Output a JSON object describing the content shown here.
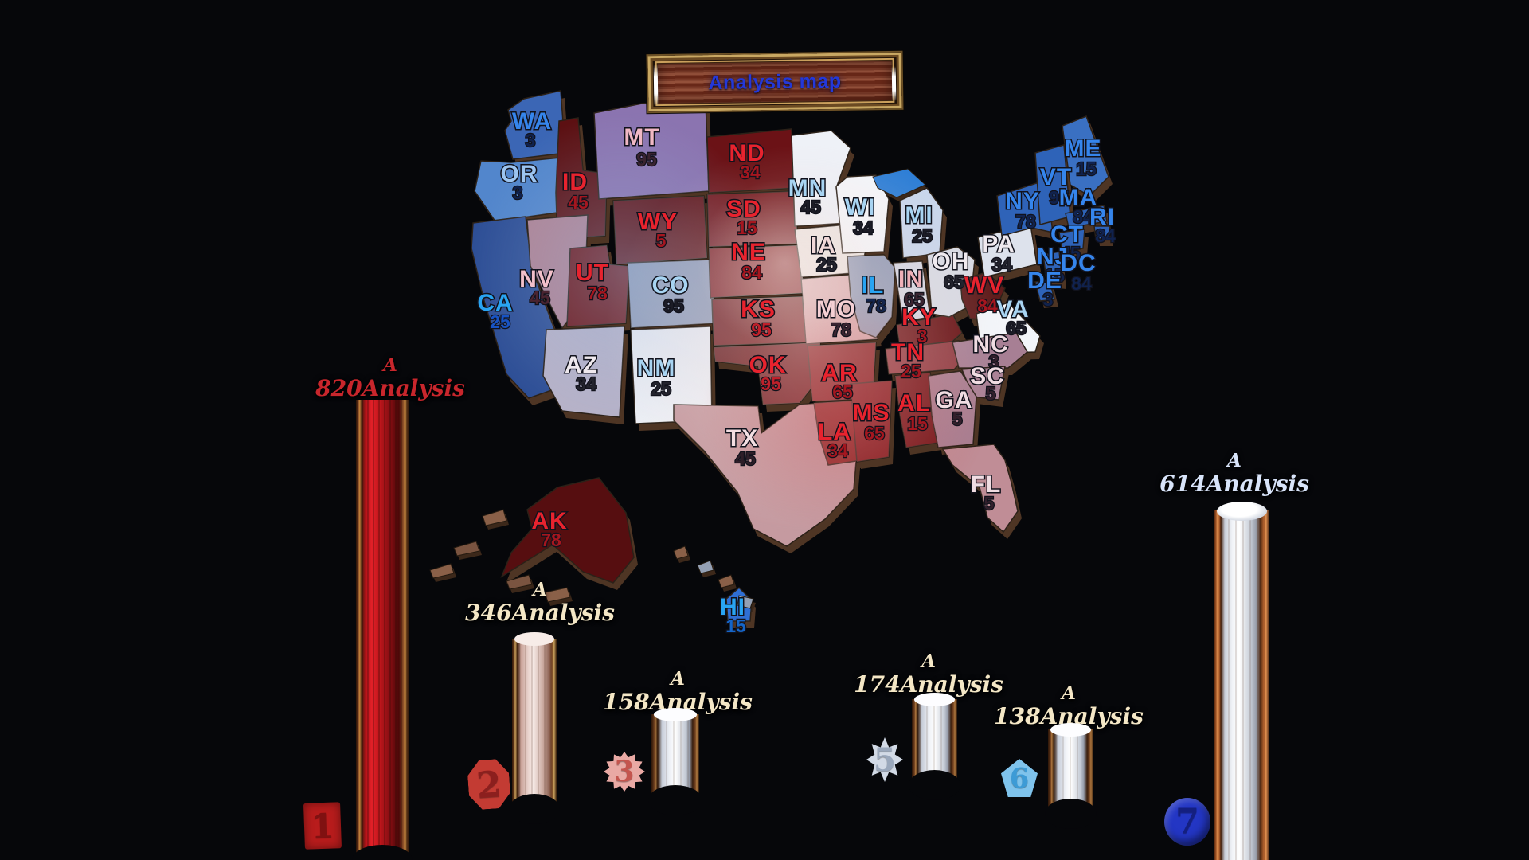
{
  "title": {
    "text": "Analysis map",
    "text_color": "#2438d8",
    "frame_color": "#c9a863",
    "wood_color": "#7a3a28"
  },
  "map": {
    "states": [
      {
        "id": "WA",
        "value": "3",
        "fill": "#3b66b5",
        "label_color": "#3585ec",
        "value_color": "#10224e"
      },
      {
        "id": "OR",
        "value": "3",
        "fill": "#5286cc",
        "label_color": "#9cc4f0",
        "value_color": "#10224e"
      },
      {
        "id": "CA",
        "value": "25",
        "fill": "#2e4f96",
        "label_color": "#29a4f2",
        "value_color": "#1753c4"
      },
      {
        "id": "ID",
        "value": "45",
        "fill": "#5c1012",
        "label_color": "#e8232e",
        "value_color": "#a5161f"
      },
      {
        "id": "NV",
        "value": "45",
        "fill": "#b08394",
        "label_color": "#f2c0ca",
        "value_color": "#4a2430"
      },
      {
        "id": "UT",
        "value": "78",
        "fill": "#6e1416",
        "label_color": "#e8232e",
        "value_color": "#a5161f"
      },
      {
        "id": "AZ",
        "value": "34",
        "fill": "#b7b2c8",
        "label_color": "#efe9ee",
        "value_color": "#23232d"
      },
      {
        "id": "MT",
        "value": "95",
        "fill": "#8b74b0",
        "label_color": "#f0b8c4",
        "value_color": "#3a2430"
      },
      {
        "id": "WY",
        "value": "5",
        "fill": "#5f1013",
        "label_color": "#e8232e",
        "value_color": "#a5161f"
      },
      {
        "id": "CO",
        "value": "95",
        "fill": "#8e9ab6",
        "label_color": "#a8d4f2",
        "value_color": "#1c1c26"
      },
      {
        "id": "NM",
        "value": "25",
        "fill": "#edf0f6",
        "label_color": "#a8d4f2",
        "value_color": "#23232d"
      },
      {
        "id": "ND",
        "value": "34",
        "fill": "#6b1216",
        "label_color": "#e8232e",
        "value_color": "#a5161f"
      },
      {
        "id": "SD",
        "value": "15",
        "fill": "#701318",
        "label_color": "#e8232e",
        "value_color": "#a5161f"
      },
      {
        "id": "NE",
        "value": "84",
        "fill": "#7a1417",
        "label_color": "#e8232e",
        "value_color": "#a5161f"
      },
      {
        "id": "KS",
        "value": "95",
        "fill": "#6a1013",
        "label_color": "#e8232e",
        "value_color": "#c0202a"
      },
      {
        "id": "OK",
        "value": "95",
        "fill": "#5e0d10",
        "label_color": "#e8232e",
        "value_color": "#c0202a"
      },
      {
        "id": "TX",
        "value": "45",
        "fill": "#c59aa0",
        "label_color": "#f3dee2",
        "value_color": "#2e1e28"
      },
      {
        "id": "MN",
        "value": "45",
        "fill": "#eef1f7",
        "label_color": "#a8d4f2",
        "value_color": "#1c1c26"
      },
      {
        "id": "IA",
        "value": "25",
        "fill": "#eae4e0",
        "label_color": "#f0d8d8",
        "value_color": "#23232d"
      },
      {
        "id": "MO",
        "value": "78",
        "fill": "#d8a9ac",
        "label_color": "#f5d0d4",
        "value_color": "#3a2430"
      },
      {
        "id": "AR",
        "value": "65",
        "fill": "#7d1315",
        "label_color": "#e8232e",
        "value_color": "#a5161f"
      },
      {
        "id": "LA",
        "value": "34",
        "fill": "#871a1a",
        "label_color": "#e8232e",
        "value_color": "#a5161f"
      },
      {
        "id": "WI",
        "value": "34",
        "fill": "#f4f6fa",
        "label_color": "#a8d4f2",
        "value_color": "#1c1c26"
      },
      {
        "id": "IL",
        "value": "78",
        "fill": "#8d98b4",
        "label_color": "#29a4f2",
        "value_color": "#14264e"
      },
      {
        "id": "MS",
        "value": "65",
        "fill": "#7c1316",
        "label_color": "#e8232e",
        "value_color": "#a5161f"
      },
      {
        "id": "MI",
        "value": "25",
        "fill": "#c8d6ec",
        "label_color": "#a8d4f2",
        "value_color": "#1c1c26"
      },
      {
        "id": "IN",
        "value": "65",
        "fill": "#d3d6e2",
        "label_color": "#efb0b8",
        "value_color": "#3a2430"
      },
      {
        "id": "KY",
        "value": "3",
        "fill": "#671013",
        "label_color": "#e8232e",
        "value_color": "#a5161f"
      },
      {
        "id": "TN",
        "value": "25",
        "fill": "#8e3a40",
        "label_color": "#e8232e",
        "value_color": "#a5161f"
      },
      {
        "id": "AL",
        "value": "15",
        "fill": "#6f1114",
        "label_color": "#e8232e",
        "value_color": "#a5161f"
      },
      {
        "id": "OH",
        "value": "65",
        "fill": "#d7dae4",
        "label_color": "#efe9ee",
        "value_color": "#23232d"
      },
      {
        "id": "WV",
        "value": "84",
        "fill": "#5f1b1b",
        "label_color": "#e8232e",
        "value_color": "#a5161f"
      },
      {
        "id": "VA",
        "value": "65",
        "fill": "#f3f5f9",
        "label_color": "#a8d4f2",
        "value_color": "#1c1c26"
      },
      {
        "id": "NC",
        "value": "3",
        "fill": "#a77f94",
        "label_color": "#f0dce2",
        "value_color": "#33202c"
      },
      {
        "id": "SC",
        "value": "5",
        "fill": "#aa8296",
        "label_color": "#f0dce2",
        "value_color": "#33202c"
      },
      {
        "id": "GA",
        "value": "5",
        "fill": "#a87f92",
        "label_color": "#f0dce2",
        "value_color": "#33202c"
      },
      {
        "id": "FL",
        "value": "5",
        "fill": "#c08d96",
        "label_color": "#f0dce2",
        "value_color": "#33202c"
      },
      {
        "id": "PA",
        "value": "34",
        "fill": "#dde2ec",
        "label_color": "#efe9ee",
        "value_color": "#23232d"
      },
      {
        "id": "NY",
        "value": "78",
        "fill": "#2f63b8",
        "label_color": "#3585ec",
        "value_color": "#10224e"
      },
      {
        "id": "VT",
        "value": "95",
        "fill": "#2e63b8",
        "label_color": "#3585ec",
        "value_color": "#10224e"
      },
      {
        "id": "ME",
        "value": "15",
        "fill": "#3a70c2",
        "label_color": "#3585ec",
        "value_color": "#10224e"
      },
      {
        "id": "MA",
        "value": "84",
        "fill": "#2e63b8",
        "label_color": "#3585ec",
        "value_color": "#10224e"
      },
      {
        "id": "RI",
        "value": "84",
        "fill": "#2e63b8",
        "label_color": "#3585ec",
        "value_color": "#10224e"
      },
      {
        "id": "CT",
        "value": "45",
        "fill": "#2e63b8",
        "label_color": "#3585ec",
        "value_color": "#10224e"
      },
      {
        "id": "NJ",
        "value": "15",
        "fill": "#2e63b8",
        "label_color": "#3585ec",
        "value_color": "#10224e"
      },
      {
        "id": "DE",
        "value": "3",
        "fill": "#2e63b8",
        "label_color": "#3585ec",
        "value_color": "#10224e"
      },
      {
        "id": "DC",
        "value": "84",
        "fill": "#2e63b8",
        "label_color": "#3585ec",
        "value_color": "#10224e"
      },
      {
        "id": "AK",
        "value": "78",
        "fill": "#560e10",
        "label_color": "#e8232e",
        "value_color": "#a5161f"
      },
      {
        "id": "HI",
        "value": "15",
        "fill": "#2f6fd4",
        "label_color": "#29a4f2",
        "value_color": "#1565c8"
      }
    ]
  },
  "gauges": [
    {
      "id": "1",
      "line1": "A",
      "line2": "820Analysis",
      "badge": "1",
      "label_color": "#c8262c",
      "bar_color": "#d11a20",
      "badge_bg": "#b81c1c",
      "badge_num": "#801111"
    },
    {
      "id": "2",
      "line1": "A",
      "line2": "346Analysis",
      "badge": "2",
      "label_color": "#f4e7c6",
      "bar_color": "#eedad4",
      "badge_bg": "#c33b33",
      "badge_num": "#8c1f1e"
    },
    {
      "id": "3",
      "line1": "A",
      "line2": "158Analysis",
      "badge": "3",
      "label_color": "#f4e7c6",
      "bar_color": "#ffffff",
      "badge_bg": "#e9a9a4",
      "badge_num": "#c4554e"
    },
    {
      "id": "5",
      "line1": "A",
      "line2": "174Analysis",
      "badge": "5",
      "label_color": "#f4e7c6",
      "bar_color": "#ffffff",
      "badge_bg": "#d2dae6",
      "badge_num": "#9aa8bc"
    },
    {
      "id": "6",
      "line1": "A",
      "line2": "138Analysis",
      "badge": "6",
      "label_color": "#f4e7c6",
      "bar_color": "#ffffff",
      "badge_bg": "#7fc3ec",
      "badge_num": "#3d9bd6"
    },
    {
      "id": "7",
      "line1": "A",
      "line2": "614Analysis",
      "badge": "7",
      "label_color": "#d8e4fa",
      "bar_color": "#f2f4f8",
      "badge_bg": "#2336c4",
      "badge_num": "#141f80"
    }
  ]
}
